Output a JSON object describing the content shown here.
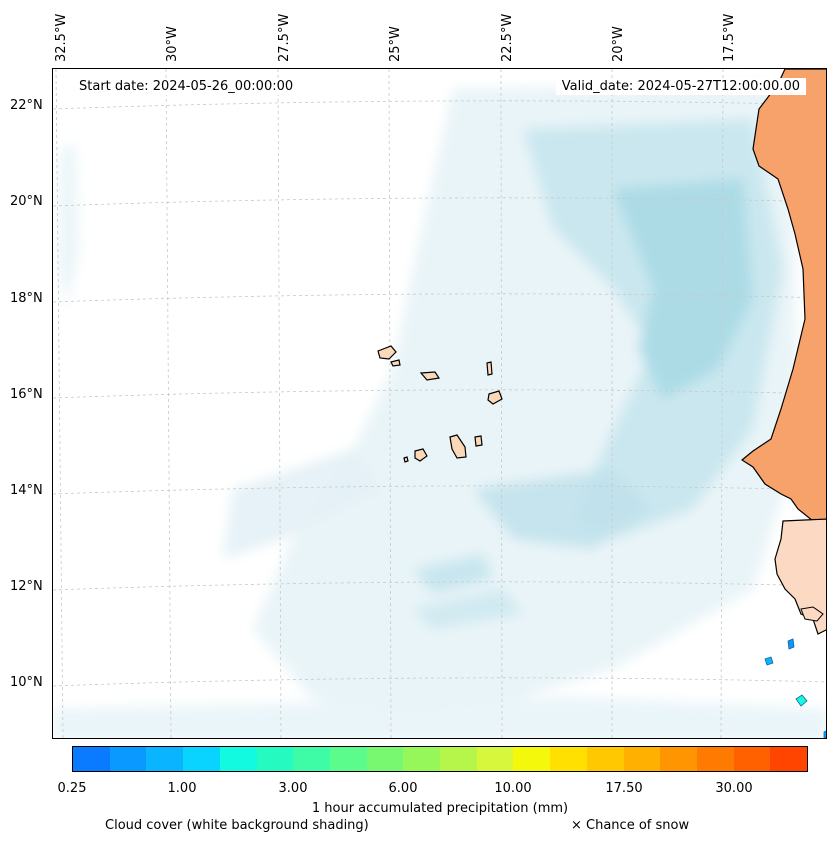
{
  "map": {
    "start_label": "Start date: 2024-05-26_00:00:00",
    "valid_label": "Valid_date: 2024-05-27T12:00:00.00",
    "lon_labels": [
      "32.5°W",
      "30°W",
      "27.5°W",
      "25°W",
      "22.5°W",
      "20°W",
      "17.5°W"
    ],
    "lat_labels": [
      "22°N",
      "20°N",
      "18°N",
      "16°N",
      "14°N",
      "12°N",
      "10°N"
    ]
  },
  "colorbar": {
    "colors": [
      "#0a7bff",
      "#0999ff",
      "#0bb4ff",
      "#08d4ff",
      "#12fae0",
      "#25fbc1",
      "#3efba6",
      "#5bfb8c",
      "#78f870",
      "#96f75a",
      "#b6f64a",
      "#d6f73c",
      "#f4f80a",
      "#ffe000",
      "#ffc800",
      "#ffb000",
      "#ff9500",
      "#ff7a00",
      "#ff6000",
      "#ff4500"
    ],
    "tick_labels": [
      "0.25",
      "1.00",
      "3.00",
      "6.00",
      "10.00",
      "17.50",
      "30.00"
    ],
    "title": "1 hour accumulated precipitation (mm)"
  },
  "legend": {
    "cloud_note": "Cloud cover (white background shading)",
    "snow_note": "× Chance of snow"
  },
  "colors": {
    "land": "#f6a26a",
    "island": "#fad8b8",
    "cloud_light": "#e7f3f7",
    "cloud_mid": "#c5e5ee",
    "cloud_dark": "#a9d9e6"
  }
}
